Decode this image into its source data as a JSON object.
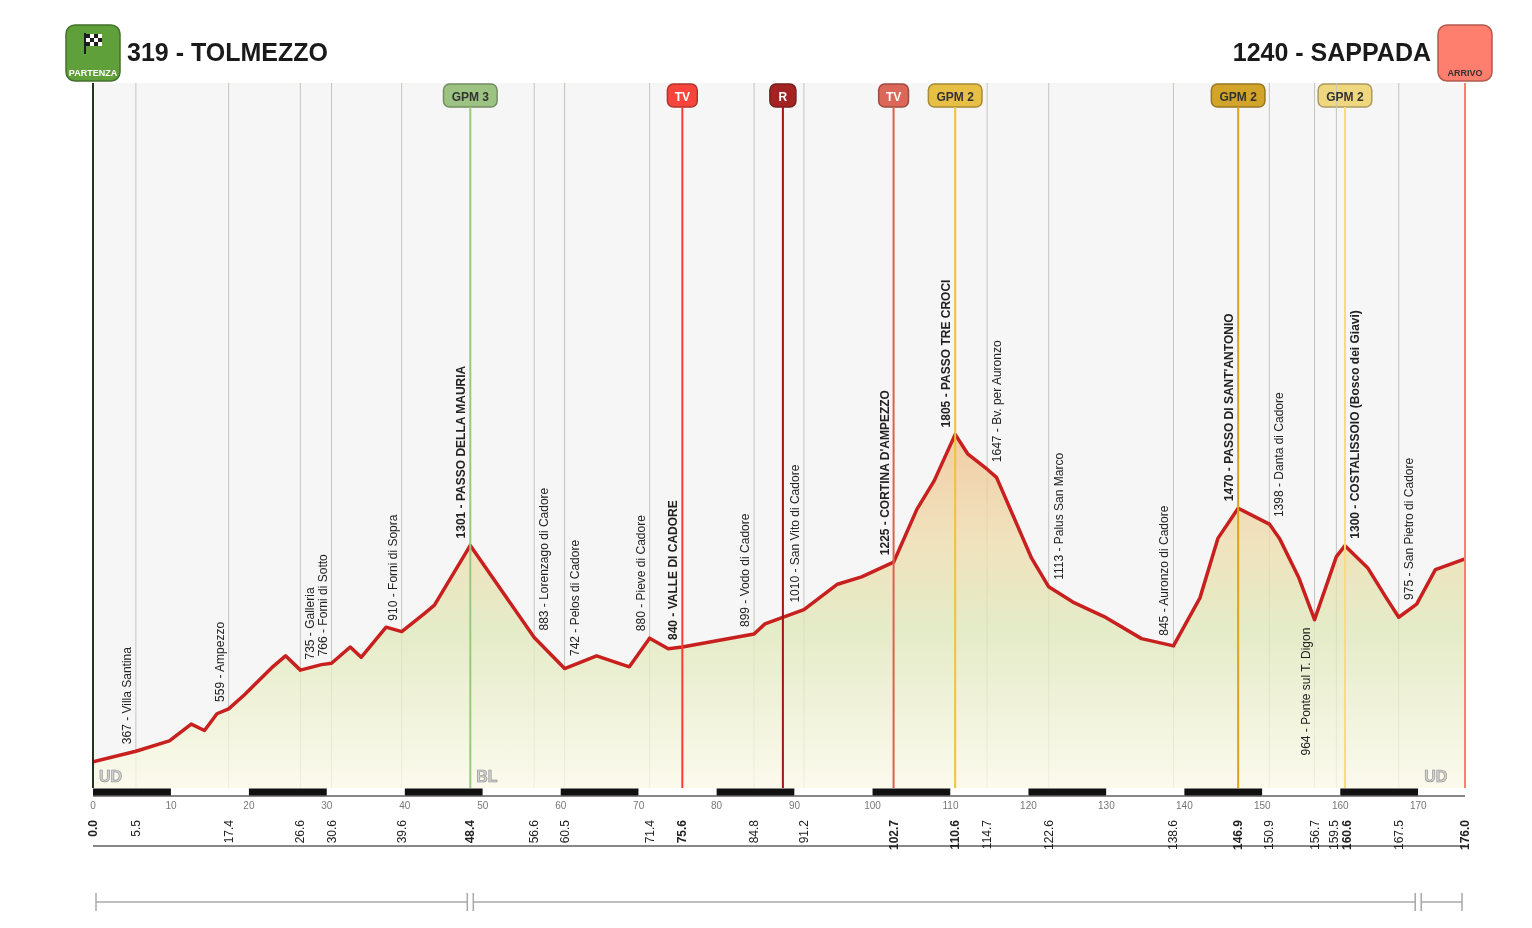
{
  "chart_data": {
    "type": "area",
    "x": [
      0,
      5.5,
      9.8,
      12.6,
      14.3,
      15.9,
      17.4,
      19.4,
      22.9,
      24.7,
      26.6,
      29.3,
      30.6,
      33,
      34.4,
      37.6,
      39.6,
      42.5,
      43.8,
      48.4,
      56.6,
      60.5,
      64.6,
      68.8,
      71.4,
      73.8,
      75.6,
      84.8,
      86.2,
      91.2,
      95.5,
      98.6,
      102.7,
      105.7,
      107.9,
      110.6,
      112.2,
      114.7,
      115.9,
      120.4,
      122.6,
      125.7,
      129.7,
      134.5,
      138.6,
      142,
      144.3,
      146.9,
      150.9,
      152.2,
      154.7,
      156.7,
      159.5,
      160.6,
      163.5,
      165.9,
      167.5,
      169.8,
      172.2,
      176
    ],
    "values": [
      319,
      367,
      414,
      490,
      461,
      537,
      559,
      622,
      745,
      800,
      735,
      760,
      766,
      840,
      793,
      930,
      910,
      992,
      1030,
      1301,
      883,
      742,
      800,
      750,
      880,
      832,
      840,
      899,
      945,
      1010,
      1125,
      1158,
      1225,
      1466,
      1594,
      1805,
      1717,
      1647,
      1610,
      1243,
      1113,
      1044,
      978,
      878,
      845,
      1063,
      1333,
      1470,
      1398,
      1333,
      1153,
      964,
      1250,
      1300,
      1200,
      1063,
      975,
      1035,
      1191,
      1240
    ],
    "value_labels": [
      null,
      "367 - Villa Santina",
      null,
      null,
      null,
      null,
      "559 - Ampezzo",
      null,
      null,
      null,
      "735 - Galleria",
      null,
      "766 - Forni di Sotto",
      null,
      null,
      null,
      "910 - Forni di Sopra",
      null,
      null,
      "1301 - PASSO DELLA MAURIA",
      "883 - Lorenzago di Cadore",
      "742 - Pelos di Cadore",
      null,
      null,
      "880 - Pieve di Cadore",
      null,
      "840 - VALLE DI CADORE",
      "899 - Vodo di Cadore",
      null,
      "1010 - San Vito di Cadore",
      null,
      null,
      "1225 - CORTINA D'AMPEZZO",
      null,
      null,
      "1805 - PASSO TRE CROCI",
      null,
      "1647 - Bv. per Auronzo",
      null,
      null,
      "1113 - Palus San Marco",
      null,
      null,
      null,
      "845 - Auronzo di Cadore",
      null,
      null,
      "1470 - PASSO DI SANT'ANTONIO",
      "1398 - Danta di Cadore",
      null,
      null,
      "964 - Ponte sul T. Digon",
      null,
      "1300 - COSTALISSOIO (Bosco dei Giavi)",
      null,
      null,
      "975 - San Pietro di Cadore",
      null,
      null,
      null
    ],
    "color": "#c8201e",
    "xlim": [
      0,
      176
    ],
    "ylim": [
      200,
      3400
    ],
    "xticks": [
      {
        "value": 0,
        "label": "0.0"
      },
      5.5,
      17.4,
      26.6,
      30.6,
      39.6,
      48.4,
      56.6,
      60.5,
      71.4,
      75.6,
      84.8,
      91.2,
      102.7,
      110.6,
      114.7,
      122.6,
      138.6,
      146.9,
      150.9,
      156.7,
      159.5,
      160.6,
      167.5,
      {
        "value": 176,
        "label": "176.0"
      }
    ],
    "x2lim": [
      0,
      176
    ],
    "x2ticks": [
      0,
      10,
      20,
      30,
      40,
      50,
      60,
      70,
      80,
      90,
      100,
      110,
      120,
      130,
      140,
      150,
      160,
      170
    ],
    "tick_labels": "x",
    "grid": "x",
    "ref_lines": [
      {
        "axis": "x",
        "value": 0,
        "label": "PARTENZA",
        "color": "#5fa03a"
      },
      {
        "axis": "x",
        "value": 48.4,
        "label": "GPM 3",
        "color": "#9cc77f"
      },
      {
        "axis": "x",
        "value": 75.6,
        "label": "TV",
        "color": "#ff3b30"
      },
      {
        "axis": "x",
        "value": 88.5,
        "label": "R",
        "color": "#a31515"
      },
      {
        "axis": "x",
        "value": 102.7,
        "label": "TV",
        "color": "#e0604f"
      },
      {
        "axis": "x",
        "value": 110.6,
        "label": "GPM 2",
        "color": "#f0c23a"
      },
      {
        "axis": "x",
        "value": 146.9,
        "label": "GPM 2",
        "color": "#d9a41c"
      },
      {
        "axis": "x",
        "value": 160.6,
        "label": "GPM 2",
        "color": "#f7dd7a"
      },
      {
        "axis": "x",
        "value": 176,
        "label": "ARRIVO",
        "color": "#ff7f6e"
      }
    ],
    "bands": [
      {
        "axis": "x",
        "from": 0,
        "to": 48.4,
        "label": "UD",
        "color": "#a8a8a8"
      },
      {
        "axis": "x",
        "from": 48.4,
        "to": 170,
        "label": "BL",
        "color": "#a8a8a8"
      },
      {
        "axis": "x",
        "from": 170,
        "to": 176,
        "label": "UD",
        "color": "#a8a8a8"
      }
    ],
    "annotations": [
      "319 - TOLMEZZO",
      "1240 - SAPPADA"
    ]
  }
}
